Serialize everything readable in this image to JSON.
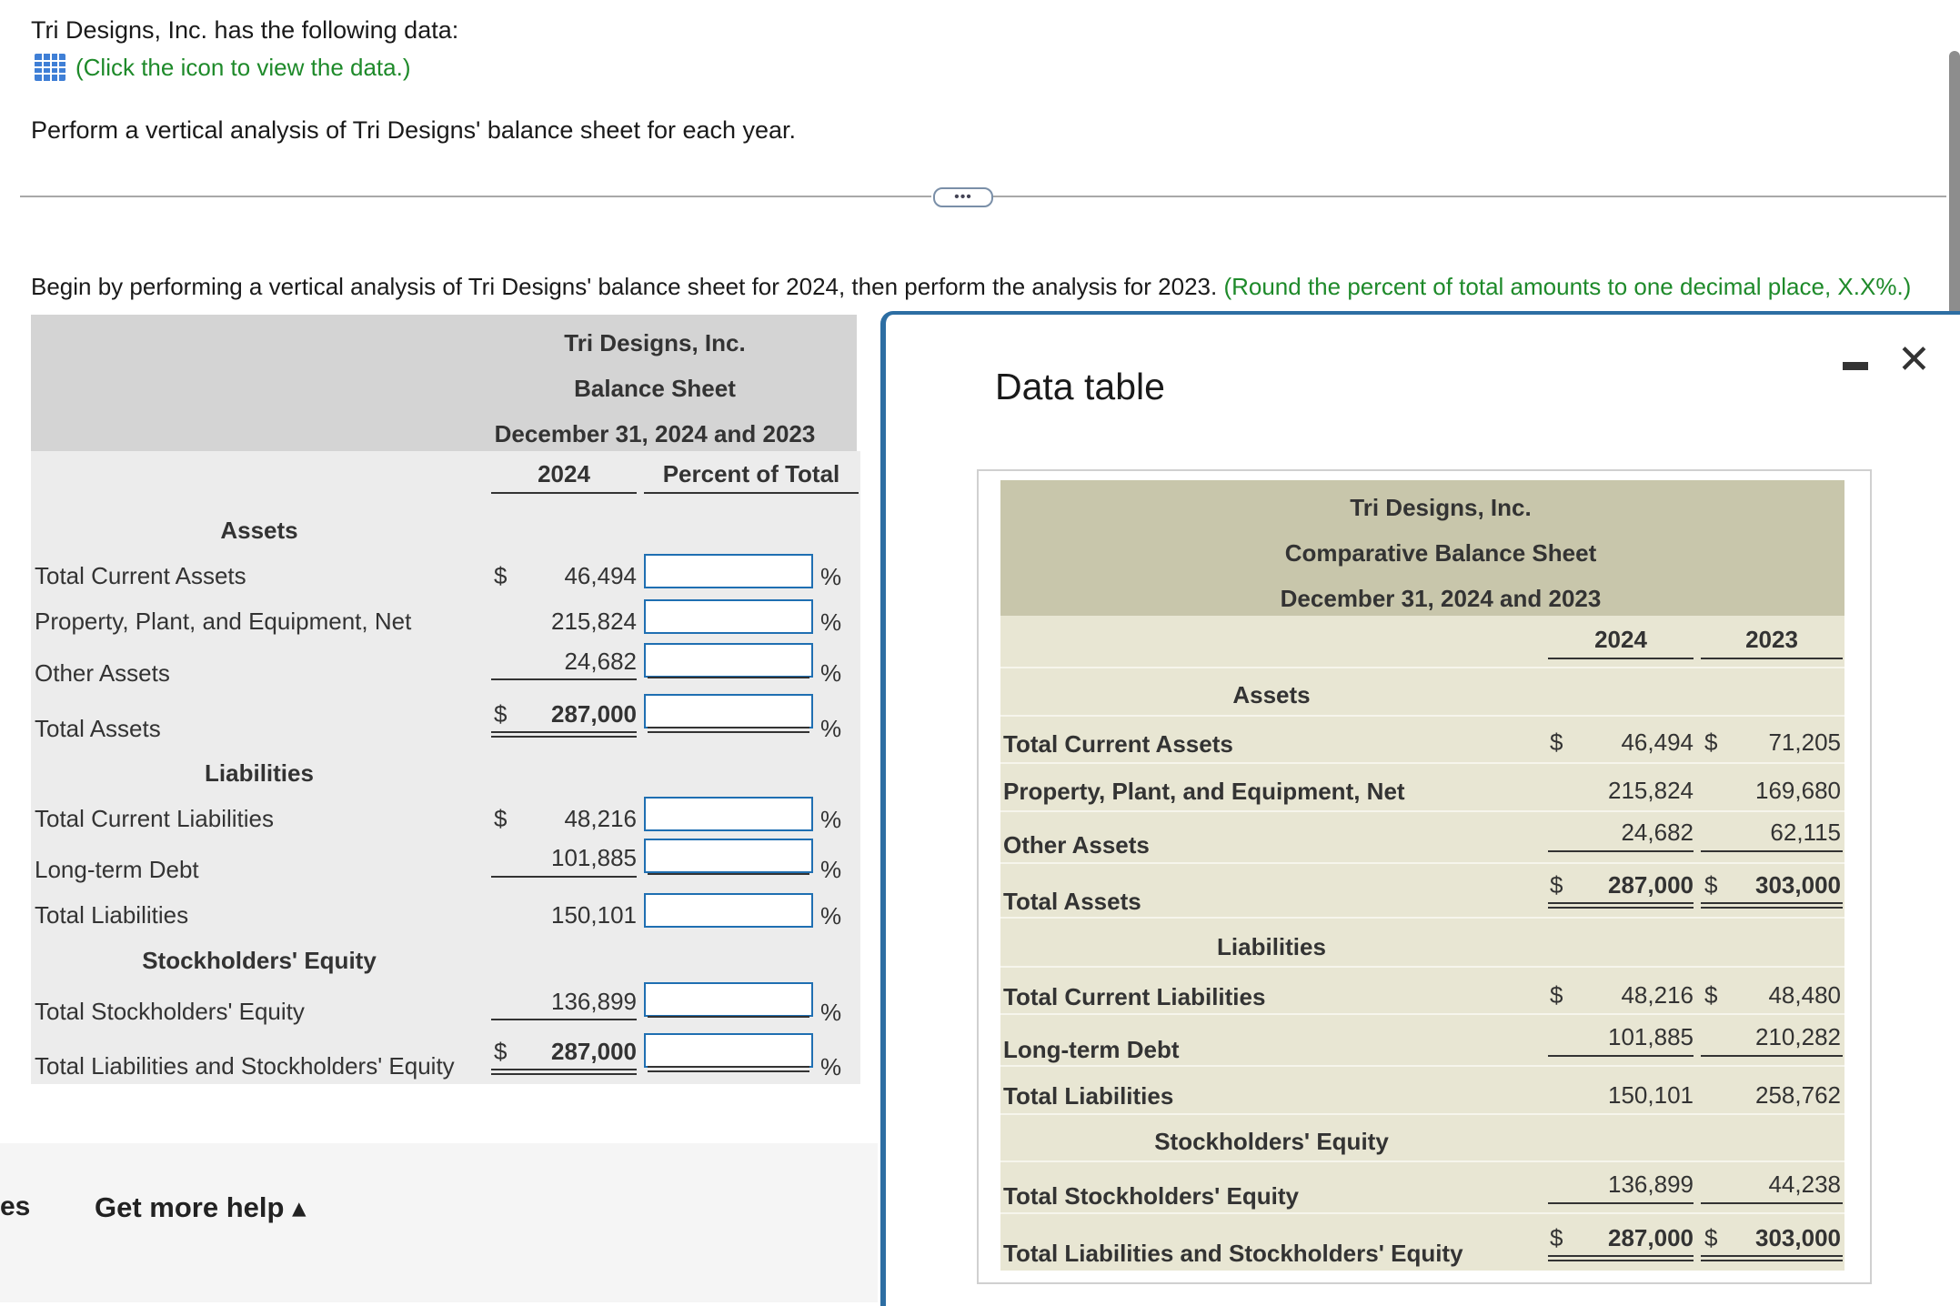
{
  "intro": {
    "line1": "Tri Designs, Inc. has the following data:",
    "data_link": "(Click the icon to view the data.)",
    "line2": "Perform a vertical analysis of Tri Designs' balance sheet for each year."
  },
  "divider": {
    "handle": "•••"
  },
  "instruction": {
    "main": "Begin by performing a vertical analysis of Tri Designs' balance sheet for 2024, then perform the analysis for 2023.",
    "hint": "(Round the percent of total amounts to one decimal place, X.X%.)"
  },
  "worksheet": {
    "company": "Tri Designs, Inc.",
    "statement": "Balance Sheet",
    "date": "December 31, 2024 and 2023",
    "col_year": "2024",
    "col_pct": "Percent of Total",
    "sections": {
      "assets": "Assets",
      "liabilities": "Liabilities",
      "equity": "Stockholders' Equity"
    },
    "rows": {
      "tca": {
        "label": "Total Current Assets",
        "dollar": "$",
        "value": "46,494",
        "pct": "%"
      },
      "ppe": {
        "label": "Property, Plant, and Equipment, Net",
        "value": "215,824",
        "pct": "%"
      },
      "oa": {
        "label": "Other Assets",
        "value": "24,682",
        "pct": "%"
      },
      "ta": {
        "label": "Total Assets",
        "dollar": "$",
        "value": "287,000",
        "pct": "%"
      },
      "tcl": {
        "label": "Total Current Liabilities",
        "dollar": "$",
        "value": "48,216",
        "pct": "%"
      },
      "ltd": {
        "label": "Long-term Debt",
        "value": "101,885",
        "pct": "%"
      },
      "tl": {
        "label": "Total Liabilities",
        "value": "150,101",
        "pct": "%"
      },
      "tse": {
        "label": "Total Stockholders' Equity",
        "value": "136,899",
        "pct": "%"
      },
      "tlse": {
        "label": "Total Liabilities and Stockholders' Equity",
        "dollar": "$",
        "value": "287,000",
        "pct": "%"
      }
    }
  },
  "bottom": {
    "left_text": "es",
    "help": "Get more help ▴"
  },
  "dialog": {
    "title": "Data table",
    "close": "✕",
    "table": {
      "company": "Tri Designs, Inc.",
      "statement": "Comparative Balance Sheet",
      "date": "December 31, 2024 and 2023",
      "col_2024": "2024",
      "col_2023": "2023",
      "sections": {
        "assets": "Assets",
        "liabilities": "Liabilities",
        "equity": "Stockholders' Equity"
      },
      "rows": {
        "tca": {
          "label": "Total Current Assets",
          "d1": "$",
          "v2024": "46,494",
          "d2": "$",
          "v2023": "71,205"
        },
        "ppe": {
          "label": "Property, Plant, and Equipment, Net",
          "v2024": "215,824",
          "v2023": "169,680"
        },
        "oa": {
          "label": "Other Assets",
          "v2024": "24,682",
          "v2023": "62,115"
        },
        "ta": {
          "label": "Total Assets",
          "d1": "$",
          "v2024": "287,000",
          "d2": "$",
          "v2023": "303,000"
        },
        "tcl": {
          "label": "Total Current Liabilities",
          "d1": "$",
          "v2024": "48,216",
          "d2": "$",
          "v2023": "48,480"
        },
        "ltd": {
          "label": "Long-term Debt",
          "v2024": "101,885",
          "v2023": "210,282"
        },
        "tl": {
          "label": "Total Liabilities",
          "v2024": "150,101",
          "v2023": "258,762"
        },
        "tse": {
          "label": "Total Stockholders' Equity",
          "v2024": "136,899",
          "v2023": "44,238"
        },
        "tlse": {
          "label": "Total Liabilities and Stockholders' Equity",
          "d1": "$",
          "v2024": "287,000",
          "d2": "$",
          "v2023": "303,000"
        }
      }
    }
  }
}
